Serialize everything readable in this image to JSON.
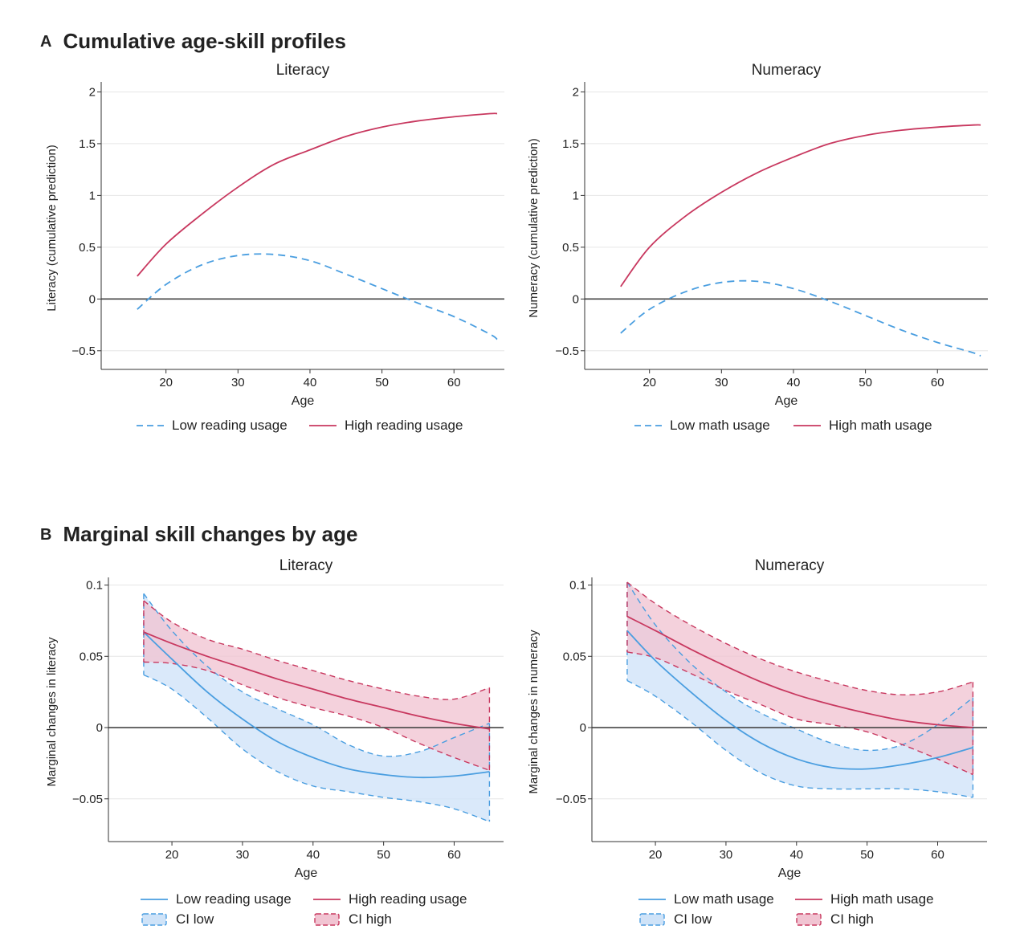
{
  "sections": [
    {
      "letter": "A",
      "title": "Cumulative age-skill profiles"
    },
    {
      "letter": "B",
      "title": "Marginal skill changes by age"
    }
  ],
  "colors": {
    "low": "#4a9ee0",
    "high": "#c8385f",
    "ci_low_fill": "#cfe3f8",
    "ci_high_fill": "#f1c4d2",
    "grid": "#e6e6e6",
    "zero": "#444444"
  },
  "chart_data": [
    {
      "id": "a-literacy",
      "type": "line",
      "title": "Literacy",
      "xlabel": "Age",
      "ylabel": "Literacy (cumulative prediction)",
      "xlim": [
        11,
        67
      ],
      "ylim": [
        -0.68,
        2.05
      ],
      "xticks": [
        20,
        30,
        40,
        50,
        60
      ],
      "xtick_labels": [
        "20",
        "30",
        "40",
        "50",
        "60"
      ],
      "yticks": [
        -0.5,
        0,
        0.5,
        1,
        1.5,
        2
      ],
      "ytick_labels": [
        "−0.5",
        "0",
        "0.5",
        "1",
        "1.5",
        "2"
      ],
      "x": [
        16,
        20,
        25,
        30,
        35,
        40,
        45,
        50,
        55,
        60,
        65,
        66
      ],
      "series": [
        {
          "name": "Low reading usage",
          "style": "dashed",
          "values": [
            -0.1,
            0.14,
            0.33,
            0.42,
            0.43,
            0.37,
            0.24,
            0.1,
            -0.04,
            -0.17,
            -0.34,
            -0.39
          ]
        },
        {
          "name": "High reading usage",
          "style": "solid",
          "values": [
            0.22,
            0.53,
            0.82,
            1.08,
            1.3,
            1.44,
            1.57,
            1.66,
            1.72,
            1.76,
            1.79,
            1.79
          ]
        }
      ],
      "legend": [
        "Low reading usage",
        "High reading usage"
      ]
    },
    {
      "id": "a-numeracy",
      "type": "line",
      "title": "Numeracy",
      "xlabel": "Age",
      "ylabel": "Numeracy (cumulative prediction)",
      "xlim": [
        11,
        67
      ],
      "ylim": [
        -0.68,
        2.05
      ],
      "xticks": [
        20,
        30,
        40,
        50,
        60
      ],
      "xtick_labels": [
        "20",
        "30",
        "40",
        "50",
        "60"
      ],
      "yticks": [
        -0.5,
        0,
        0.5,
        1,
        1.5,
        2
      ],
      "ytick_labels": [
        "−0.5",
        "0",
        "0.5",
        "1",
        "1.5",
        "2"
      ],
      "x": [
        16,
        20,
        25,
        30,
        35,
        40,
        45,
        50,
        55,
        60,
        65,
        66
      ],
      "series": [
        {
          "name": "Low math usage",
          "style": "dashed",
          "values": [
            -0.33,
            -0.1,
            0.07,
            0.16,
            0.17,
            0.1,
            -0.02,
            -0.16,
            -0.3,
            -0.42,
            -0.52,
            -0.55
          ]
        },
        {
          "name": "High math usage",
          "style": "solid",
          "values": [
            0.12,
            0.5,
            0.8,
            1.03,
            1.22,
            1.37,
            1.5,
            1.58,
            1.63,
            1.66,
            1.68,
            1.68
          ]
        }
      ],
      "legend": [
        "Low math usage",
        "High math usage"
      ]
    },
    {
      "id": "b-literacy",
      "type": "area",
      "title": "Literacy",
      "xlabel": "Age",
      "ylabel": "Marginal changes in literacy",
      "xlim": [
        11,
        67
      ],
      "ylim": [
        -0.08,
        0.102
      ],
      "xticks": [
        20,
        30,
        40,
        50,
        60
      ],
      "xtick_labels": [
        "20",
        "30",
        "40",
        "50",
        "60"
      ],
      "yticks": [
        -0.05,
        0,
        0.05,
        0.1
      ],
      "ytick_labels": [
        "−0.05",
        "0",
        "0.05",
        "0.1"
      ],
      "x": [
        16,
        20,
        25,
        30,
        35,
        40,
        45,
        50,
        55,
        60,
        65
      ],
      "series": [
        {
          "name": "Low reading usage",
          "values": [
            0.067,
            0.048,
            0.025,
            0.006,
            -0.01,
            -0.021,
            -0.029,
            -0.033,
            -0.035,
            -0.034,
            -0.031
          ],
          "ci_lower": [
            0.037,
            0.027,
            0.007,
            -0.015,
            -0.031,
            -0.041,
            -0.045,
            -0.049,
            -0.052,
            -0.057,
            -0.066
          ],
          "ci_upper": [
            0.094,
            0.068,
            0.043,
            0.025,
            0.013,
            0.002,
            -0.012,
            -0.02,
            -0.017,
            -0.007,
            0.003
          ]
        },
        {
          "name": "High reading usage",
          "values": [
            0.067,
            0.059,
            0.05,
            0.042,
            0.034,
            0.027,
            0.02,
            0.014,
            0.008,
            0.003,
            -0.001
          ],
          "ci_lower": [
            0.046,
            0.045,
            0.04,
            0.03,
            0.021,
            0.014,
            0.008,
            0.0,
            -0.011,
            -0.021,
            -0.03
          ],
          "ci_upper": [
            0.089,
            0.074,
            0.062,
            0.055,
            0.047,
            0.04,
            0.033,
            0.027,
            0.022,
            0.02,
            0.028
          ]
        }
      ],
      "legend": [
        "Low reading usage",
        "High reading usage",
        "CI low",
        "CI high"
      ]
    },
    {
      "id": "b-numeracy",
      "type": "area",
      "title": "Numeracy",
      "xlabel": "Age",
      "ylabel": "Marginal changes in numeracy",
      "xlim": [
        11,
        67
      ],
      "ylim": [
        -0.08,
        0.102
      ],
      "xticks": [
        20,
        30,
        40,
        50,
        60
      ],
      "xtick_labels": [
        "20",
        "30",
        "40",
        "50",
        "60"
      ],
      "yticks": [
        -0.05,
        0,
        0.05,
        0.1
      ],
      "ytick_labels": [
        "−0.05",
        "0",
        "0.05",
        "0.1"
      ],
      "x": [
        16,
        20,
        25,
        30,
        35,
        40,
        45,
        50,
        55,
        60,
        65
      ],
      "series": [
        {
          "name": "Low math usage",
          "values": [
            0.068,
            0.047,
            0.025,
            0.005,
            -0.011,
            -0.022,
            -0.028,
            -0.029,
            -0.026,
            -0.021,
            -0.014
          ],
          "ci_lower": [
            0.033,
            0.022,
            0.004,
            -0.016,
            -0.032,
            -0.041,
            -0.043,
            -0.043,
            -0.043,
            -0.045,
            -0.049
          ],
          "ci_upper": [
            0.102,
            0.072,
            0.045,
            0.025,
            0.01,
            -0.001,
            -0.011,
            -0.016,
            -0.012,
            0.002,
            0.021
          ]
        },
        {
          "name": "High math usage",
          "values": [
            0.078,
            0.068,
            0.055,
            0.043,
            0.032,
            0.023,
            0.016,
            0.01,
            0.005,
            0.002,
            0.0
          ],
          "ci_lower": [
            0.053,
            0.049,
            0.038,
            0.026,
            0.016,
            0.006,
            0.002,
            -0.003,
            -0.012,
            -0.022,
            -0.033
          ],
          "ci_upper": [
            0.102,
            0.087,
            0.072,
            0.059,
            0.048,
            0.039,
            0.032,
            0.026,
            0.023,
            0.025,
            0.032
          ]
        }
      ],
      "legend": [
        "Low math usage",
        "High math usage",
        "CI low",
        "CI high"
      ]
    }
  ]
}
